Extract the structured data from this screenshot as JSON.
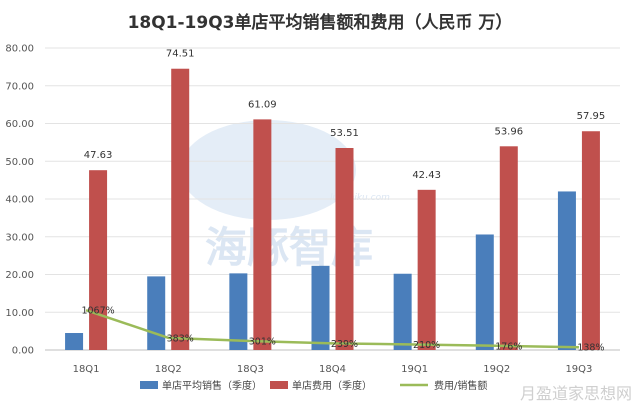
{
  "chart_data": {
    "type": "bar",
    "title": "18Q1-19Q3单店平均销售额和费用（人民币 万）",
    "categories": [
      "18Q1",
      "18Q2",
      "18Q3",
      "18Q4",
      "19Q1",
      "19Q2",
      "19Q3"
    ],
    "ylim": [
      0,
      80
    ],
    "yticks": [
      "0.00",
      "10.00",
      "20.00",
      "30.00",
      "40.00",
      "50.00",
      "60.00",
      "70.00",
      "80.00"
    ],
    "grid": true,
    "legend_position": "bottom",
    "series": [
      {
        "name": "单店平均销售（季度）",
        "type": "bar",
        "color": "#4a7ebb",
        "values": [
          4.5,
          19.5,
          20.3,
          22.3,
          20.2,
          30.6,
          42.0
        ]
      },
      {
        "name": "单店费用（季度）",
        "type": "bar",
        "color": "#c0504d",
        "values": [
          47.63,
          74.51,
          61.09,
          53.51,
          42.43,
          53.96,
          57.95
        ],
        "labels": [
          "47.63",
          "74.51",
          "61.09",
          "53.51",
          "42.43",
          "53.96",
          "57.95"
        ]
      },
      {
        "name": "费用/销售额",
        "type": "line",
        "color": "#9bbb59",
        "values": [
          1067,
          383,
          301,
          239,
          210,
          176,
          138
        ],
        "labels": [
          "1067%",
          "383%",
          "301%",
          "239%",
          "210%",
          "176%",
          "138%"
        ]
      }
    ]
  },
  "watermark": {
    "brand": "海豚智库",
    "domain": "lunzhiku.com",
    "source": "月盈道家思想网"
  }
}
